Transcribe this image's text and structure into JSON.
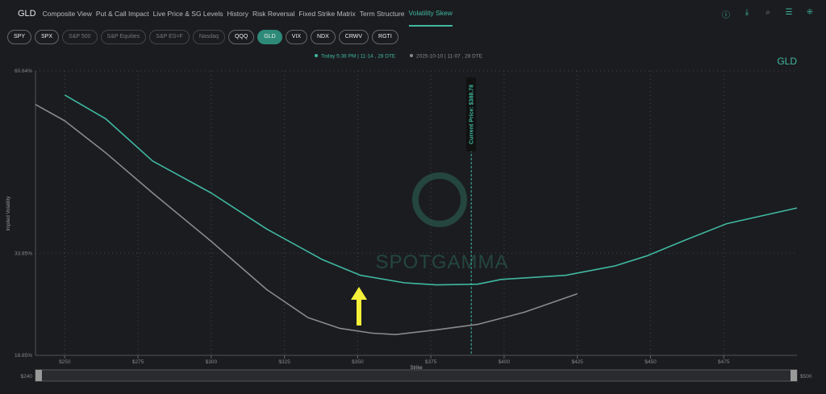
{
  "nav": {
    "symbol": "GLD",
    "tabs": [
      "Composite View",
      "Put & Call Impact",
      "Live Price & SG Levels",
      "History",
      "Risk Reversal",
      "Fixed Strike Matrix",
      "Term Structure",
      "Volatility Skew"
    ],
    "active_tab": 7
  },
  "toolbar_icons": [
    "info-icon",
    "download-icon",
    "search-icon",
    "sliders-icon",
    "collapse-icon"
  ],
  "tickers": [
    {
      "label": "SPY",
      "state": "normal"
    },
    {
      "label": "SPX",
      "state": "normal"
    },
    {
      "label": "S&P 500",
      "state": "dim"
    },
    {
      "label": "S&P Equities",
      "state": "dim"
    },
    {
      "label": "S&P ES=F",
      "state": "dim"
    },
    {
      "label": "Nasdaq",
      "state": "dim"
    },
    {
      "label": "QQQ",
      "state": "normal"
    },
    {
      "label": "GLD",
      "state": "active"
    },
    {
      "label": "VIX",
      "state": "normal"
    },
    {
      "label": "NDX",
      "state": "normal"
    },
    {
      "label": "CRWV",
      "state": "normal"
    },
    {
      "label": "RGTI",
      "state": "normal"
    }
  ],
  "watermark": "SPOTGAMMA",
  "chart_data": {
    "type": "line",
    "title": "GLD",
    "xlabel": "Strike",
    "ylabel": "Implied Volatility",
    "xlim": [
      240,
      500
    ],
    "ylim": [
      18.85,
      60.64
    ],
    "xticks": [
      250,
      275,
      300,
      325,
      350,
      375,
      400,
      425,
      450,
      475
    ],
    "xtick_labels": [
      "$250",
      "$275",
      "$300",
      "$325",
      "$350",
      "$375",
      "$400",
      "$425",
      "$450",
      "$475"
    ],
    "yticks": [
      18.85,
      33.85,
      60.64
    ],
    "ytick_labels": [
      "18.85%",
      "33.85%",
      "60.64%"
    ],
    "grid": true,
    "legend_placement": "top-center",
    "current_price": {
      "value": 388.78,
      "label": "Current Price: $388.78"
    },
    "range_slider": {
      "min_label": "$240",
      "max_label": "$500"
    },
    "annotation": "yellow arrow pointing up at ~$350",
    "series": [
      {
        "name": "Today 5:38 PM | 11-14 , 28 DTE",
        "color": "#3fb8a0",
        "x": [
          250,
          264,
          280,
          300,
          319,
          338,
          351,
          366,
          377,
          391,
          399,
          421,
          438,
          449,
          462,
          476,
          500
        ],
        "y": [
          57.1,
          53.6,
          47.4,
          42.7,
          37.4,
          32.9,
          30.6,
          29.5,
          29.2,
          29.3,
          30.0,
          30.6,
          32.0,
          33.5,
          35.8,
          38.2,
          40.5
        ]
      },
      {
        "name": "2025-10-10 | 11-07 , 28 DTE",
        "color": "#8a8a8a",
        "x": [
          240,
          250,
          264,
          280,
          300,
          319,
          333,
          344,
          355,
          363,
          377,
          391,
          407,
          425
        ],
        "y": [
          55.7,
          53.3,
          48.6,
          42.7,
          35.6,
          28.5,
          24.4,
          22.8,
          22.1,
          21.9,
          22.6,
          23.4,
          25.2,
          27.9
        ]
      }
    ]
  }
}
